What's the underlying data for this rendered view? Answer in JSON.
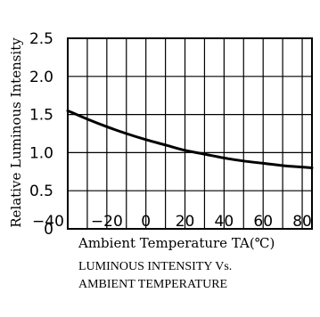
{
  "chart_data": {
    "type": "line",
    "title": "",
    "caption": [
      "LUMINOUS INTENSITY Vs.",
      "AMBIENT TEMPERATURE"
    ],
    "xlabel": "Ambient Temperature TA(℃)",
    "ylabel": "Relative Luminous Intensity",
    "xlim": [
      -40,
      85
    ],
    "ylim": [
      0,
      2.5
    ],
    "x_ticks": [
      -40,
      -20,
      0,
      20,
      40,
      60,
      80
    ],
    "x_tick_labels": [
      "−40",
      "−20",
      "0",
      "20",
      "40",
      "60",
      "80"
    ],
    "y_ticks": [
      0,
      0.5,
      1.0,
      1.5,
      2.0,
      2.5
    ],
    "y_tick_labels": [
      "0",
      "0.5",
      "1.0",
      "1.5",
      "2.0",
      "2.5"
    ],
    "grid": true,
    "grid_x_step": 10,
    "grid_y_step": 0.5,
    "legend": "none",
    "series": [
      {
        "x": [
          -40,
          -30,
          -20,
          -10,
          0,
          10,
          20,
          30,
          40,
          50,
          60,
          70,
          80,
          85
        ],
        "values": [
          1.55,
          1.44,
          1.34,
          1.25,
          1.17,
          1.1,
          1.03,
          0.98,
          0.93,
          0.89,
          0.86,
          0.83,
          0.81,
          0.8
        ]
      }
    ]
  }
}
